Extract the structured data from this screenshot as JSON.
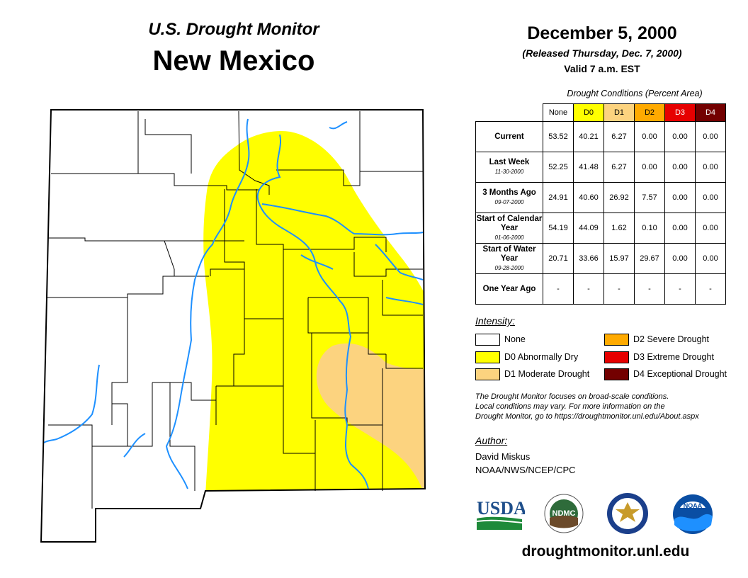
{
  "header": {
    "subtitle": "U.S. Drought Monitor",
    "title": "New Mexico"
  },
  "date_info": {
    "date": "December 5, 2000",
    "released": "(Released Thursday, Dec. 7, 2000)",
    "valid": "Valid 7 a.m. EST"
  },
  "table": {
    "caption": "Drought Conditions (Percent Area)",
    "headers": [
      "None",
      "D0",
      "D1",
      "D2",
      "D3",
      "D4"
    ],
    "header_colors": [
      "#ffffff",
      "#ffff00",
      "#fcd37f",
      "#ffaa00",
      "#e60000",
      "#730000"
    ],
    "header_text_colors": [
      "#000000",
      "#000000",
      "#000000",
      "#000000",
      "#ffffff",
      "#ffffff"
    ],
    "rows": [
      {
        "label": "Current",
        "sub": "",
        "values": [
          "53.52",
          "40.21",
          "6.27",
          "0.00",
          "0.00",
          "0.00"
        ]
      },
      {
        "label": "Last Week",
        "sub": "11-30-2000",
        "values": [
          "52.25",
          "41.48",
          "6.27",
          "0.00",
          "0.00",
          "0.00"
        ]
      },
      {
        "label": "3 Months Ago",
        "sub": "09-07-2000",
        "values": [
          "24.91",
          "40.60",
          "26.92",
          "7.57",
          "0.00",
          "0.00"
        ]
      },
      {
        "label": "Start of Calendar Year",
        "sub": "01-06-2000",
        "values": [
          "54.19",
          "44.09",
          "1.62",
          "0.10",
          "0.00",
          "0.00"
        ]
      },
      {
        "label": "Start of Water Year",
        "sub": "09-28-2000",
        "values": [
          "20.71",
          "33.66",
          "15.97",
          "29.67",
          "0.00",
          "0.00"
        ]
      },
      {
        "label": "One Year Ago",
        "sub": "",
        "values": [
          "-",
          "-",
          "-",
          "-",
          "-",
          "-"
        ]
      }
    ]
  },
  "legend": {
    "title": "Intensity:",
    "items": [
      {
        "label": "None",
        "color": "#ffffff"
      },
      {
        "label": "D0 Abnormally Dry",
        "color": "#ffff00"
      },
      {
        "label": "D1 Moderate Drought",
        "color": "#fcd37f"
      },
      {
        "label": "D2 Severe Drought",
        "color": "#ffaa00"
      },
      {
        "label": "D3 Extreme Drought",
        "color": "#e60000"
      },
      {
        "label": "D4 Exceptional Drought",
        "color": "#730000"
      }
    ]
  },
  "note": {
    "line1": "The Drought Monitor focuses on broad-scale conditions.",
    "line2": "Local conditions may vary. For more information on the",
    "line3": "Drought Monitor, go to https://droughtmonitor.unl.edu/About.aspx"
  },
  "author": {
    "title": "Author:",
    "name": "David Miskus",
    "org": "NOAA/NWS/NCEP/CPC"
  },
  "logos": {
    "usda": "USDA",
    "ndmc": "NDMC",
    "noaa": "NOAA"
  },
  "website": "droughtmonitor.unl.edu",
  "colors": {
    "d0": "#ffff00",
    "d1": "#fcd37f",
    "river": "#1e90ff"
  }
}
